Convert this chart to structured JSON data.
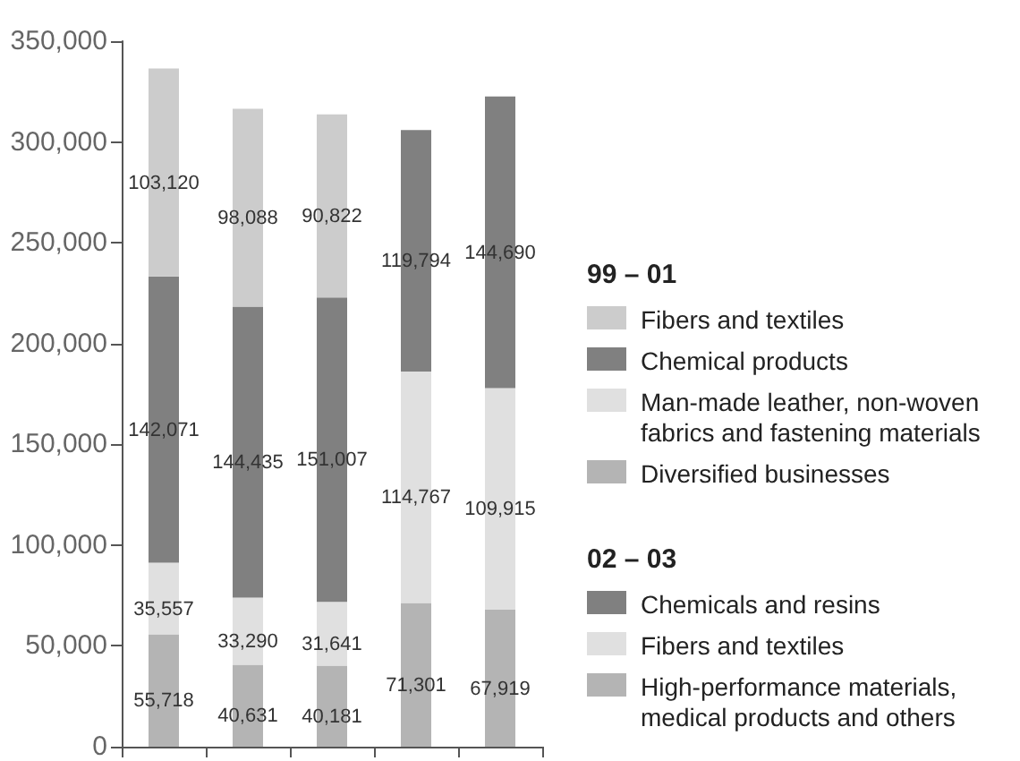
{
  "chart_data": {
    "type": "bar",
    "stacked": true,
    "categories": [
      null,
      null,
      null,
      null,
      null
    ],
    "ylim": [
      0,
      350000
    ],
    "yticks": [
      0,
      {
        "value": 50000,
        "label": "50,000"
      },
      {
        "value": 100000,
        "label": "100,000"
      },
      {
        "value": 150000,
        "label": "150,000"
      },
      {
        "value": 200000,
        "label": "200,000"
      },
      {
        "value": 250000,
        "label": "250,000"
      },
      {
        "value": 300000,
        "label": "300,000"
      },
      {
        "value": 350000,
        "label": "350,000"
      }
    ],
    "grid": false,
    "legend": "right",
    "annotations": [
      "99 – 01",
      "02 – 03"
    ],
    "series": [
      {
        "name": "Diversified businesses",
        "color": "#b4b4b4",
        "values": [
          55718,
          40631,
          40181,
          null,
          null
        ],
        "value_labels": [
          "55,718",
          "40,631",
          "40,181",
          null,
          null
        ]
      },
      {
        "name": "Man-made leather, non-woven fabrics and fastening materials",
        "color": "#e0e0e0",
        "values": [
          35557,
          33290,
          31641,
          null,
          null
        ],
        "value_labels": [
          "35,557",
          "33,290",
          "31,641",
          null,
          null
        ]
      },
      {
        "name": "Chemical products",
        "color": "#808080",
        "values": [
          142071,
          144435,
          151007,
          null,
          null
        ],
        "value_labels": [
          "142,071",
          "144,435",
          "151,007",
          null,
          null
        ]
      },
      {
        "name": "Fibers and textiles",
        "color": "#cccccc",
        "values": [
          103120,
          98088,
          90822,
          null,
          null
        ],
        "value_labels": [
          "103,120",
          "98,088",
          "90,822",
          null,
          null
        ]
      },
      {
        "name": "High-performance materials, medical products and others",
        "color": "#b4b4b4",
        "values": [
          null,
          null,
          null,
          71301,
          67919
        ],
        "value_labels": [
          null,
          null,
          null,
          "71,301",
          "67,919"
        ]
      },
      {
        "name": "Fibers and textiles",
        "color": "#e0e0e0",
        "values": [
          null,
          null,
          null,
          114767,
          109915
        ],
        "value_labels": [
          null,
          null,
          null,
          "114,767",
          "109,915"
        ]
      },
      {
        "name": "Chemicals and resins",
        "color": "#808080",
        "values": [
          null,
          null,
          null,
          119794,
          144690
        ],
        "value_labels": [
          null,
          null,
          null,
          "119,794",
          "144,690"
        ]
      }
    ]
  }
}
